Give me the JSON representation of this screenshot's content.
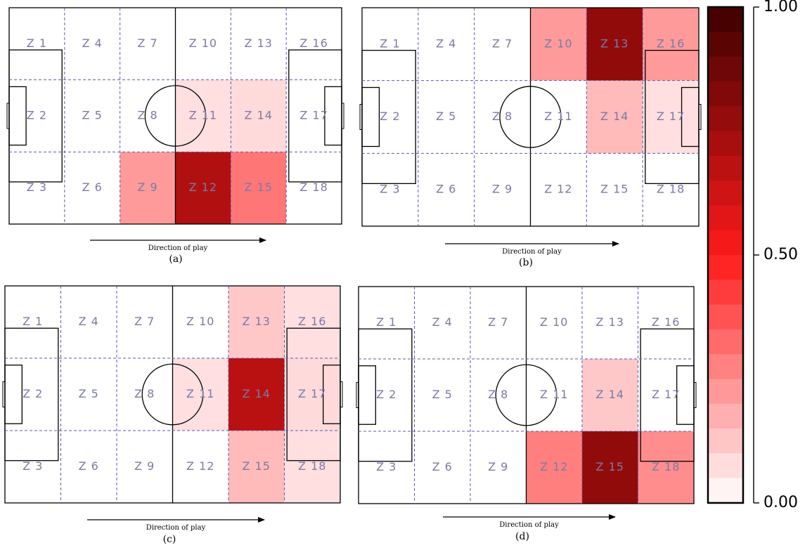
{
  "chart_data": {
    "type": "heatmap",
    "panels": [
      {
        "caption": "(a)",
        "arrow_label": "Direction of play",
        "zones": [
          "Z 1",
          "Z 2",
          "Z 3",
          "Z 4",
          "Z 5",
          "Z 6",
          "Z 7",
          "Z 8",
          "Z 9",
          "Z 10",
          "Z 11",
          "Z 12",
          "Z 13",
          "Z 14",
          "Z 15",
          "Z 16",
          "Z 17",
          "Z 18"
        ],
        "values": [
          0,
          0,
          0,
          0,
          0,
          0,
          0,
          0,
          0.22,
          0,
          0.07,
          0.7,
          0,
          0.08,
          0.3,
          0,
          0,
          0
        ]
      },
      {
        "caption": "(b)",
        "arrow_label": "Direction of play",
        "zones": [
          "Z 1",
          "Z 2",
          "Z 3",
          "Z 4",
          "Z 5",
          "Z 6",
          "Z 7",
          "Z 8",
          "Z 9",
          "Z 10",
          "Z 11",
          "Z 12",
          "Z 13",
          "Z 14",
          "Z 15",
          "Z 16",
          "Z 17",
          "Z 18"
        ],
        "values": [
          0,
          0,
          0,
          0,
          0,
          0,
          0,
          0,
          0,
          0.22,
          0,
          0,
          0.78,
          0.15,
          0,
          0.22,
          0.07,
          0
        ]
      },
      {
        "caption": "(c)",
        "arrow_label": "Direction of play",
        "zones": [
          "Z 1",
          "Z 2",
          "Z 3",
          "Z 4",
          "Z 5",
          "Z 6",
          "Z 7",
          "Z 8",
          "Z 9",
          "Z 10",
          "Z 11",
          "Z 12",
          "Z 13",
          "Z 14",
          "Z 15",
          "Z 16",
          "Z 17",
          "Z 18"
        ],
        "values": [
          0,
          0,
          0,
          0,
          0,
          0,
          0,
          0,
          0,
          0,
          0.07,
          0,
          0.12,
          0.68,
          0.15,
          0.07,
          0.08,
          0.07
        ]
      },
      {
        "caption": "(d)",
        "arrow_label": "Direction of play",
        "zones": [
          "Z 1",
          "Z 2",
          "Z 3",
          "Z 4",
          "Z 5",
          "Z 6",
          "Z 7",
          "Z 8",
          "Z 9",
          "Z 10",
          "Z 11",
          "Z 12",
          "Z 13",
          "Z 14",
          "Z 15",
          "Z 16",
          "Z 17",
          "Z 18"
        ],
        "values": [
          0,
          0,
          0,
          0,
          0,
          0,
          0,
          0,
          0,
          0,
          0,
          0.28,
          0,
          0.12,
          0.78,
          0,
          0,
          0.25
        ]
      }
    ],
    "colorbar": {
      "ticks": [
        "1.00",
        "0.50",
        "0.00"
      ],
      "tick_values": [
        1.0,
        0.5,
        0.0
      ],
      "range": [
        0,
        1
      ],
      "colors": [
        "#ffffff",
        "#ff1a1a",
        "#3d0000"
      ]
    }
  }
}
